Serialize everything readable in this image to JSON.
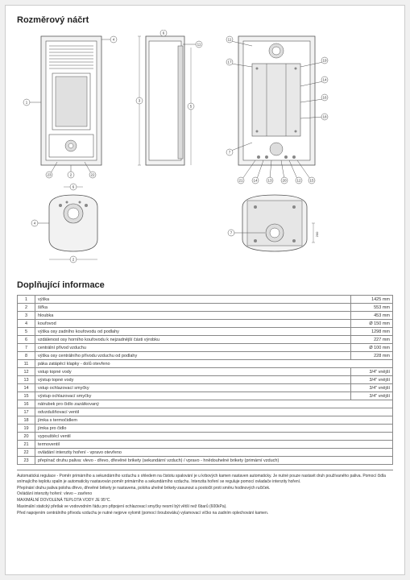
{
  "section1_title": "Rozměrový náčrt",
  "section2_title": "Doplňující informace",
  "spec_rows": [
    {
      "n": "1",
      "label": "výška",
      "val": "1425 mm"
    },
    {
      "n": "2",
      "label": "šířka",
      "val": "553 mm"
    },
    {
      "n": "3",
      "label": "hloubka",
      "val": "453 mm"
    },
    {
      "n": "4",
      "label": "kouřovod",
      "val": "Ø 150 mm"
    },
    {
      "n": "5",
      "label": "výška osy zadního kouřovodu od podlahy",
      "val": "1298 mm"
    },
    {
      "n": "6",
      "label": "vzdálenost osy horního kouřovodu k nejzadnější části výrobku",
      "val": "227 mm"
    },
    {
      "n": "7",
      "label": "centrální přívod vzduchu",
      "val": "Ø 100 mm"
    },
    {
      "n": "8",
      "label": "výška osy centrálního přívodu vzduchu od podlahy",
      "val": "228 mm"
    },
    {
      "n": "11",
      "label": "páka zatápěcí klapky - dolů otevřeno",
      "val": ""
    },
    {
      "n": "12",
      "label": "vstup topné vody",
      "val": "3/4\" vnější"
    },
    {
      "n": "13",
      "label": "výstup topné vody",
      "val": "3/4\" vnější"
    },
    {
      "n": "14",
      "label": "vstup ochlazovací smyčky",
      "val": "3/4\" vnější"
    },
    {
      "n": "15",
      "label": "výstup ochlazovací smyčky",
      "val": "3/4\" vnější"
    },
    {
      "n": "16",
      "label": "nátrubek pro čidlo zazátkovaný",
      "val": ""
    },
    {
      "n": "17",
      "label": "odvzdušňovací ventil",
      "val": ""
    },
    {
      "n": "18",
      "label": "jímka s termočidlem",
      "val": ""
    },
    {
      "n": "19",
      "label": "jímka pro čidlo",
      "val": ""
    },
    {
      "n": "20",
      "label": "vypouštěcí ventil",
      "val": ""
    },
    {
      "n": "21",
      "label": "termoventil",
      "val": ""
    },
    {
      "n": "22",
      "label": "ovládání intenzity hoření - vpravo otevřeno",
      "val": ""
    },
    {
      "n": "23",
      "label": "přepínač druhu paliva: vlevo - dřevo, dřevěné brikety (sekundární vzduch) / vpravo - hnědouhelné brikety (primární vzduch)",
      "val": ""
    }
  ],
  "notes": [
    "Automatická regulace - Poměr primárního a sekundárního vzduchu s ohledem na čistotu spalování je u krbových kamen nastaven automaticky. Je nutné pouze nastavit druh používaného paliva. Pomocí čidla snímajícího teplotu spalin je automaticky nastavován poměr primárního a sekundárního vzduchu. Intenzita hoření se reguluje pomocí ovladače intenzity hoření.",
    "Přepínání druhu paliva:poloha dřevo, dřevěné brikety je nastavena, poloha uhelné brikety-zasunout a pootočit proti směru hodinových ručiček.",
    "Ovládání intenzity hoření: vlevo – zavřeno",
    "MAXIMÁLNÍ DOVOLENÁ TEPLOTA VODY JE 95°C.",
    "Maximální statický přetlak ve vodovodním řádu pro připojení ochlazovací smyčky nesmí být větší než 6barů (600kPa).",
    "Před napojením centrálního přívodu vzduchu je nutné nejprve vylomit (pomocí šroubováku) vylamovací víčko na zadním oplechování kamen."
  ],
  "drawing": {
    "callouts_back": [
      "11",
      "17",
      "19",
      "14",
      "16",
      "18",
      "7",
      "21",
      "14",
      "13",
      "20",
      "12",
      "15"
    ],
    "callouts_front": [
      "1",
      "2",
      "4",
      "3",
      "23",
      "22"
    ],
    "callouts_side": [
      "3",
      "5",
      "6",
      "11"
    ],
    "callouts_top": [
      "4",
      "6",
      "2"
    ],
    "callouts_bottom": [
      "7"
    ],
    "dim_bottom": "200",
    "colors": {
      "outline_stroke": "#555555",
      "fill_light": "#f2f2f2",
      "fill_hatch": "#e8e8e8",
      "bg": "#ffffff"
    }
  }
}
